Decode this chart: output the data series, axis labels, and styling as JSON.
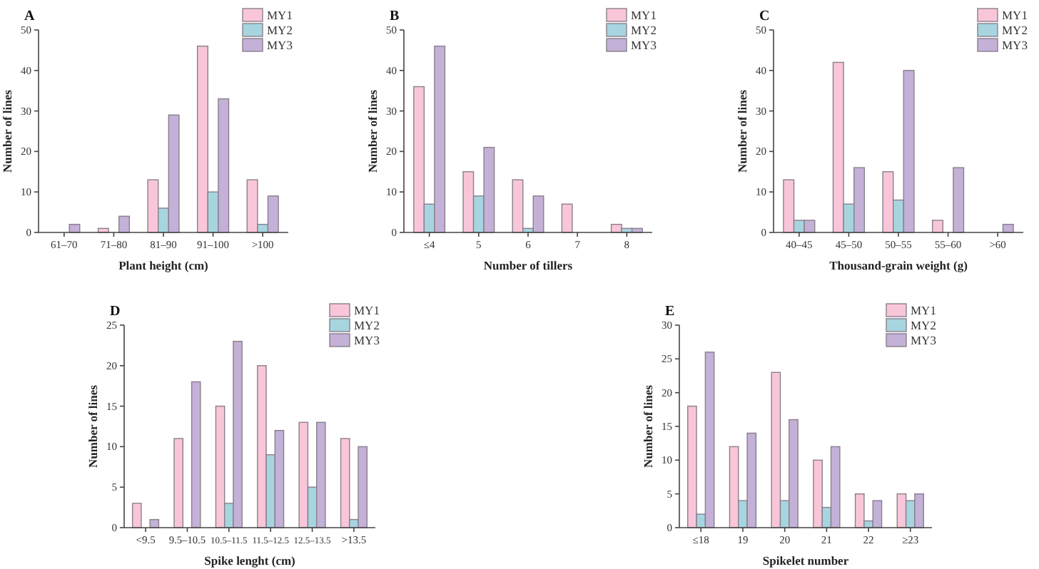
{
  "chart_data": [
    {
      "type": "bar",
      "title": "A",
      "xlabel": "Plant height (cm)",
      "ylabel": "Number of lines",
      "categories": [
        "61–70",
        "71–80",
        "81–90",
        "91–100",
        ">100"
      ],
      "ylim": [
        0,
        50
      ],
      "yticks": [
        0,
        10,
        20,
        30,
        40,
        50
      ],
      "grid": false,
      "legend": "top right",
      "series": [
        {
          "name": "MY1",
          "color": "#f9c6d9",
          "values": [
            0,
            1,
            13,
            46,
            13
          ]
        },
        {
          "name": "MY2",
          "color": "#a6d5e0",
          "values": [
            0,
            0,
            6,
            10,
            2
          ]
        },
        {
          "name": "MY3",
          "color": "#c3b1d7",
          "values": [
            2,
            4,
            29,
            33,
            9
          ]
        }
      ]
    },
    {
      "type": "bar",
      "title": "B",
      "xlabel": "Number of tillers",
      "ylabel": "Number of lines",
      "categories": [
        "≤4",
        "5",
        "6",
        "7",
        "8"
      ],
      "ylim": [
        0,
        50
      ],
      "yticks": [
        0,
        10,
        20,
        30,
        40,
        50
      ],
      "grid": false,
      "legend": "top right",
      "series": [
        {
          "name": "MY1",
          "color": "#f9c6d9",
          "values": [
            36,
            15,
            13,
            7,
            2
          ]
        },
        {
          "name": "MY2",
          "color": "#a6d5e0",
          "values": [
            7,
            9,
            1,
            0,
            1
          ]
        },
        {
          "name": "MY3",
          "color": "#c3b1d7",
          "values": [
            46,
            21,
            9,
            0,
            1
          ]
        }
      ]
    },
    {
      "type": "bar",
      "title": "C",
      "xlabel": "Thousand-grain weight (g)",
      "ylabel": "Number of lines",
      "categories": [
        "40–45",
        "45–50",
        "50–55",
        "55–60",
        ">60"
      ],
      "ylim": [
        0,
        50
      ],
      "yticks": [
        0,
        10,
        20,
        30,
        40,
        50
      ],
      "grid": false,
      "legend": "top right",
      "series": [
        {
          "name": "MY1",
          "color": "#f9c6d9",
          "values": [
            13,
            42,
            15,
            3,
            0
          ]
        },
        {
          "name": "MY2",
          "color": "#a6d5e0",
          "values": [
            3,
            7,
            8,
            0,
            0
          ]
        },
        {
          "name": "MY3",
          "color": "#c3b1d7",
          "values": [
            3,
            16,
            40,
            16,
            2
          ]
        }
      ]
    },
    {
      "type": "bar",
      "title": "D",
      "xlabel": "Spike lenght (cm)",
      "ylabel": "Number of lines",
      "categories": [
        "<9.5",
        "9.5–10.5",
        "10.5–11.5",
        "11.5–12.5",
        "12.5–13.5",
        ">13.5"
      ],
      "ylim": [
        0,
        25
      ],
      "yticks": [
        0,
        5,
        10,
        15,
        20,
        25
      ],
      "grid": false,
      "legend": "top right",
      "series": [
        {
          "name": "MY1",
          "color": "#f9c6d9",
          "values": [
            3,
            11,
            15,
            20,
            13,
            11
          ]
        },
        {
          "name": "MY2",
          "color": "#a6d5e0",
          "values": [
            0,
            0,
            3,
            9,
            5,
            1
          ]
        },
        {
          "name": "MY3",
          "color": "#c3b1d7",
          "values": [
            1,
            18,
            23,
            12,
            13,
            10
          ]
        }
      ]
    },
    {
      "type": "bar",
      "title": "E",
      "xlabel": "Spikelet number",
      "ylabel": "Number of lines",
      "categories": [
        "≤18",
        "19",
        "20",
        "21",
        "22",
        "≥23"
      ],
      "ylim": [
        0,
        30
      ],
      "yticks": [
        0,
        5,
        10,
        15,
        20,
        25,
        30
      ],
      "grid": false,
      "legend": "top right",
      "series": [
        {
          "name": "MY1",
          "color": "#f9c6d9",
          "values": [
            18,
            12,
            23,
            10,
            5,
            5
          ]
        },
        {
          "name": "MY2",
          "color": "#a6d5e0",
          "values": [
            2,
            4,
            4,
            3,
            1,
            4
          ]
        },
        {
          "name": "MY3",
          "color": "#c3b1d7",
          "values": [
            26,
            14,
            16,
            12,
            4,
            5
          ]
        }
      ]
    }
  ]
}
